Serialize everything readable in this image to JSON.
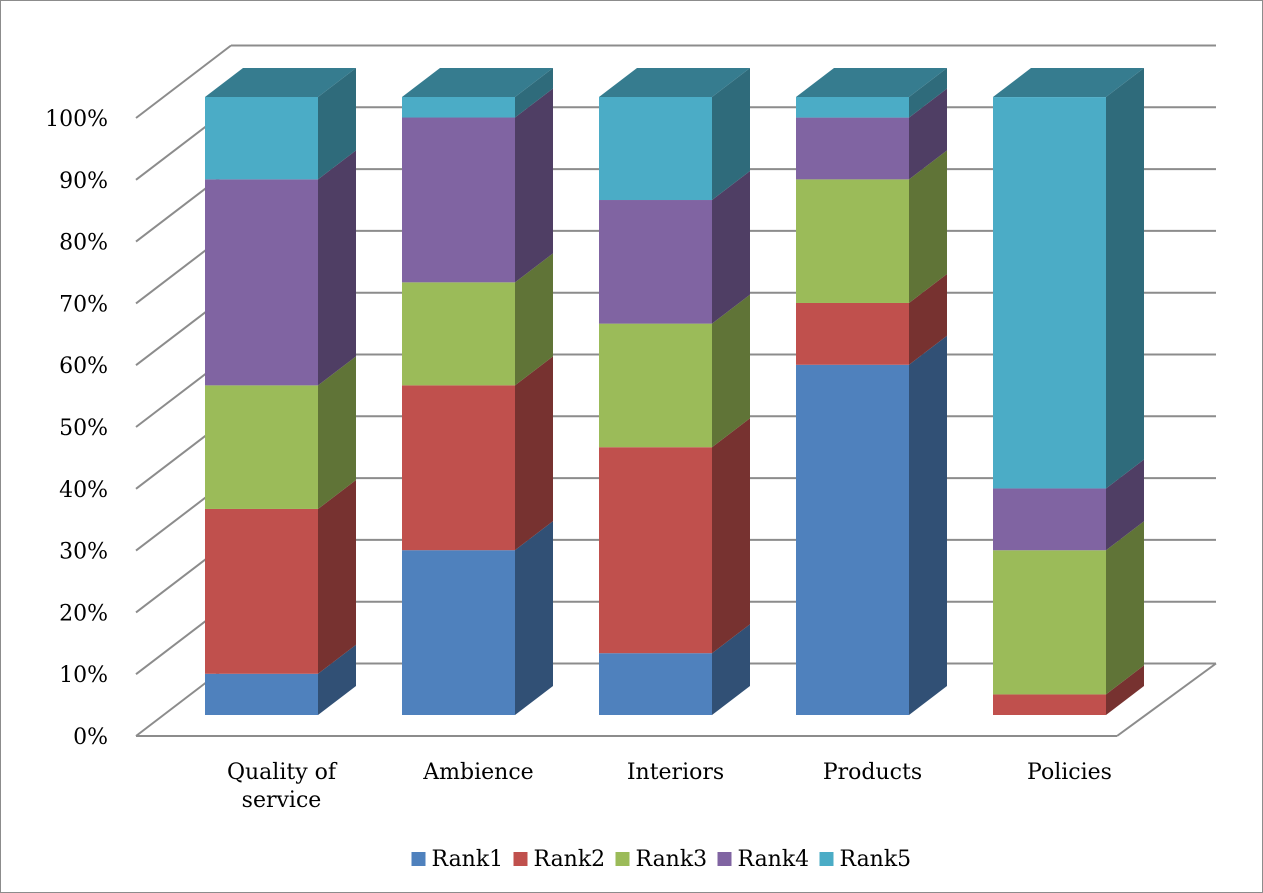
{
  "chart_data": {
    "type": "bar",
    "stacked": true,
    "three_d": true,
    "title": "",
    "xlabel": "",
    "ylabel": "",
    "ylim": [
      0,
      100
    ],
    "y_tick_labels": [
      "0%",
      "10%",
      "20%",
      "30%",
      "40%",
      "50%",
      "60%",
      "70%",
      "80%",
      "90%",
      "100%"
    ],
    "categories": [
      "Quality of service",
      "Ambience",
      "Interiors",
      "Products",
      "Policies"
    ],
    "category_lines": [
      [
        "Quality of",
        "service"
      ],
      [
        "Ambience"
      ],
      [
        "Interiors"
      ],
      [
        "Products"
      ],
      [
        "Policies"
      ]
    ],
    "series": [
      {
        "name": "Rank1",
        "color": "#4F81BD",
        "values": [
          6.67,
          26.67,
          10,
          56.67,
          0
        ]
      },
      {
        "name": "Rank2",
        "color": "#C0504D",
        "values": [
          26.67,
          26.67,
          33.33,
          10,
          3.33
        ]
      },
      {
        "name": "Rank3",
        "color": "#9BBB59",
        "values": [
          20,
          16.67,
          20,
          20,
          23.33
        ]
      },
      {
        "name": "Rank4",
        "color": "#8064A2",
        "values": [
          33.33,
          26.67,
          20,
          10,
          10
        ]
      },
      {
        "name": "Rank5",
        "color": "#4BACC6",
        "values": [
          13.33,
          3.33,
          16.67,
          3.33,
          63.33
        ]
      }
    ],
    "grid": true,
    "legend_position": "bottom"
  }
}
